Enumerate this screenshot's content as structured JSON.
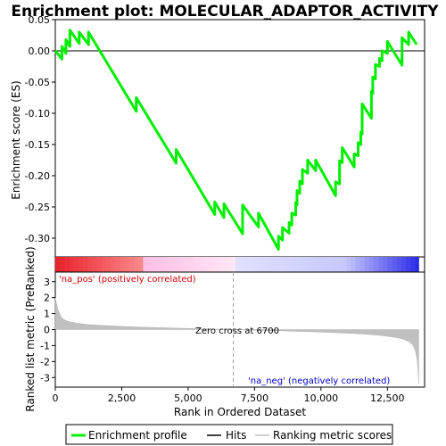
{
  "chart_data": {
    "type": "line",
    "title": "Enrichment plot: MOLECULAR_ADAPTOR_ACTIVITY",
    "top_panel": {
      "ylabel": "Enrichment score (ES)",
      "ylim": [
        -0.33,
        0.05
      ],
      "yticks": [
        0.05,
        0.0,
        -0.05,
        -0.1,
        -0.15,
        -0.2,
        -0.25,
        -0.3
      ],
      "ytick_labels": [
        "0.05",
        "0.00",
        "-0.05",
        "-0.10",
        "-0.15",
        "-0.20",
        "-0.25",
        "-0.30"
      ],
      "series": [
        {
          "name": "Enrichment profile",
          "color": "#00ee00",
          "x": [
            0,
            250,
            250,
            400,
            400,
            550,
            550,
            900,
            900,
            1250,
            1250,
            3050,
            3050,
            4550,
            4550,
            6000,
            6000,
            6350,
            6350,
            7050,
            7050,
            7650,
            7650,
            8400,
            8400,
            8550,
            8550,
            8800,
            8800,
            8900,
            8900,
            9050,
            9050,
            9100,
            9100,
            9200,
            9200,
            9300,
            9300,
            9500,
            9500,
            9800,
            9800,
            10550,
            10550,
            10700,
            10700,
            10800,
            10800,
            11250,
            11250,
            11400,
            11400,
            11500,
            11500,
            11550,
            11550,
            11900,
            11900,
            11950,
            11950,
            12050,
            12050,
            12200,
            12200,
            12300,
            12300,
            12500,
            12500,
            13050,
            13050,
            13300,
            13300,
            13600
          ],
          "y": [
            0.0,
            -0.013,
            0.007,
            -0.004,
            0.018,
            0.007,
            0.033,
            0.012,
            0.03,
            0.01,
            0.03,
            -0.097,
            -0.075,
            -0.18,
            -0.158,
            -0.262,
            -0.242,
            -0.267,
            -0.245,
            -0.293,
            -0.247,
            -0.282,
            -0.26,
            -0.318,
            -0.297,
            -0.303,
            -0.283,
            -0.292,
            -0.275,
            -0.279,
            -0.26,
            -0.263,
            -0.243,
            -0.247,
            -0.224,
            -0.228,
            -0.209,
            -0.213,
            -0.19,
            -0.196,
            -0.175,
            -0.192,
            -0.175,
            -0.232,
            -0.21,
            -0.213,
            -0.176,
            -0.179,
            -0.155,
            -0.186,
            -0.165,
            -0.168,
            -0.147,
            -0.15,
            -0.13,
            -0.133,
            -0.085,
            -0.108,
            -0.065,
            -0.068,
            -0.042,
            -0.045,
            -0.022,
            -0.025,
            -0.012,
            -0.016,
            0.0,
            -0.004,
            0.015,
            -0.023,
            0.021,
            0.01,
            0.03,
            0.01
          ]
        }
      ]
    },
    "hits": {
      "name": "Hits",
      "x": [
        250,
        400,
        550,
        900,
        1250,
        3050,
        4550,
        6000,
        6350,
        7050,
        7100,
        7650,
        8400,
        8550,
        8800,
        8900,
        9050,
        9100,
        9200,
        9300,
        9500,
        9800,
        10550,
        10700,
        10750,
        10800,
        11250,
        11400,
        11500,
        11550,
        11900,
        11950,
        12050,
        12200,
        12300,
        12500,
        13050,
        13100,
        13300
      ]
    },
    "rank_bar": {
      "positive_color": "#e8202a",
      "negative_color": "#2a2ae8",
      "neutral_color": "#ffffff"
    },
    "bottom_panel": {
      "xlabel": "Rank in Ordered Dataset",
      "ylabel": "Ranked list metric (PreRanked)",
      "ylim": [
        -3.6,
        3.6
      ],
      "yticks": [
        3,
        2,
        1,
        0,
        -1,
        -2,
        -3
      ],
      "ytick_labels": [
        "3",
        "2",
        "1",
        "0",
        "-1",
        "-2",
        "-3"
      ],
      "xlim": [
        0,
        13900
      ],
      "xticks": [
        0,
        2500,
        5000,
        7500,
        10000,
        12500
      ],
      "xtick_labels": [
        "0",
        "2,500",
        "5,000",
        "7,500",
        "10,000",
        "12,500"
      ],
      "zero_cross": 6700,
      "zero_cross_label": "Zero cross at 6700",
      "pos_label": "'na_pos' (positively correlated)",
      "neg_label": "'na_neg' (negatively correlated)",
      "metric_x": [
        0,
        50,
        100,
        200,
        300,
        500,
        800,
        1200,
        2000,
        3000,
        4000,
        5000,
        6000,
        6700,
        7500,
        8500,
        9500,
        10500,
        11500,
        12200,
        12800,
        13100,
        13300,
        13450,
        13550,
        13620,
        13660,
        13680
      ],
      "metric_y": [
        2.0,
        1.6,
        1.25,
        0.85,
        0.65,
        0.5,
        0.4,
        0.32,
        0.24,
        0.17,
        0.12,
        0.07,
        0.03,
        0.0,
        -0.04,
        -0.08,
        -0.13,
        -0.19,
        -0.27,
        -0.36,
        -0.48,
        -0.6,
        -0.75,
        -0.95,
        -1.3,
        -1.9,
        -2.7,
        -3.4
      ]
    },
    "legend": {
      "placement": "bottom",
      "items": [
        {
          "label": "Enrichment profile",
          "color": "#00ee00"
        },
        {
          "label": "Hits",
          "color": "#000000"
        },
        {
          "label": "Ranking metric scores",
          "color": "#c0c0c0"
        }
      ]
    }
  }
}
